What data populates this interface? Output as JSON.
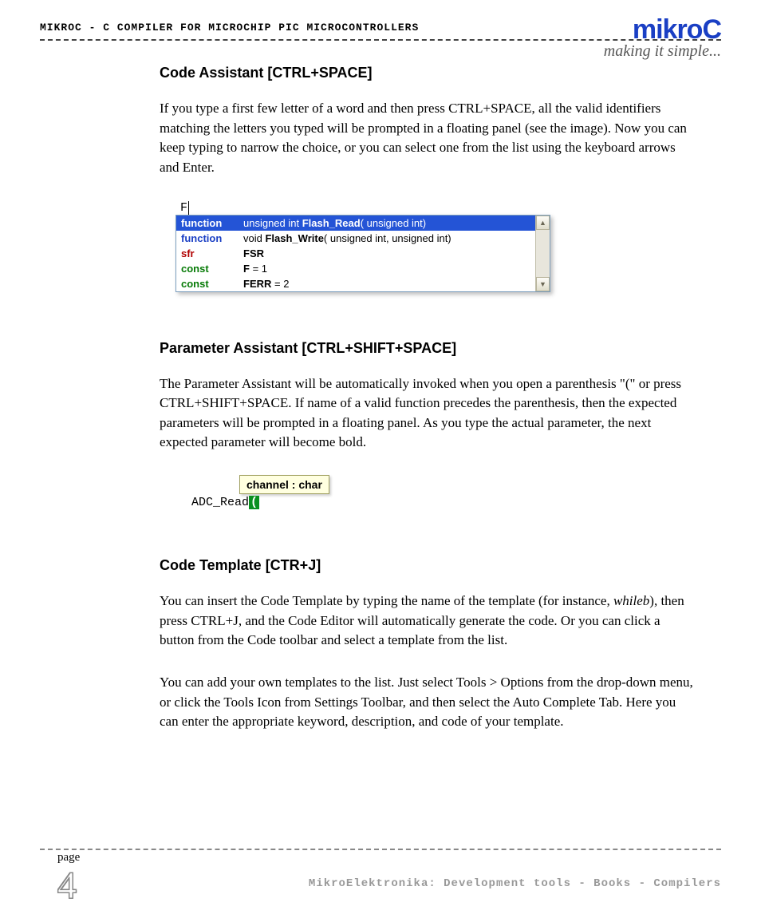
{
  "header": {
    "title": "mikroC - C Compiler for Microchip PIC microcontrollers",
    "logo": "mikroC",
    "tagline": "making it simple..."
  },
  "sections": {
    "code_assistant": {
      "title": "Code Assistant [CTRL+SPACE]",
      "body": "If you type a first few letter of a word and then press CTRL+SPACE, all the valid identifiers matching the letters you typed will be prompted in a floating panel (see the image). Now you can keep typing to narrow the choice, or you can select one from the list using the keyboard arrows and Enter.",
      "popup": {
        "typed": "F",
        "rows": [
          {
            "kind": "function",
            "kind_class": "fn",
            "sig_prefix": "unsigned int ",
            "sig_bold": "Flash_Read",
            "sig_suffix": "( unsigned int)",
            "selected": true
          },
          {
            "kind": "function",
            "kind_class": "fn",
            "sig_prefix": "void ",
            "sig_bold": "Flash_Write",
            "sig_suffix": "( unsigned int,  unsigned int)",
            "selected": false
          },
          {
            "kind": "sfr",
            "kind_class": "sfr",
            "sig_prefix": "",
            "sig_bold": "FSR",
            "sig_suffix": "",
            "selected": false
          },
          {
            "kind": "const",
            "kind_class": "const",
            "sig_prefix": "",
            "sig_bold": "F",
            "sig_suffix": " = 1",
            "selected": false
          },
          {
            "kind": "const",
            "kind_class": "const",
            "sig_prefix": "",
            "sig_bold": "FERR",
            "sig_suffix": " = 2",
            "selected": false
          }
        ],
        "scroll_up_glyph": "▲",
        "scroll_down_glyph": "▼",
        "colors": {
          "selected_bg": "#2454d6",
          "fn": "#1a3fc4",
          "sfr": "#b00000",
          "const": "#067a06",
          "border": "#7b9ebd"
        }
      }
    },
    "param_assistant": {
      "title": "Parameter Assistant [CTRL+SHIFT+SPACE]",
      "body": "The Parameter Assistant will be automatically invoked when you open a parenthesis \"(\" or press CTRL+SHIFT+SPACE. If name of a valid function precedes the parenthesis, then the expected parameters will be prompted in a floating panel. As you type the actual parameter, the next expected parameter will become bold.",
      "tooltip": "channel : char",
      "call_name": "ADC_Read",
      "paren": "(",
      "tooltip_bg": "#ffffe0",
      "paren_bg": "#0a9020"
    },
    "code_template": {
      "title": "Code Template [CTR+J]",
      "body1_pre": "You can insert the Code Template by typing the name of the template (for instance, ",
      "body1_em": "whileb",
      "body1_post": "), then press CTRL+J, and the Code Editor will automatically generate the code. Or you can click a button from the Code toolbar and select a template from the list.",
      "body2": "You can add your own templates to the list. Just select Tools > Options from the drop-down menu, or click the Tools Icon from Settings Toolbar, and then select the Auto Complete Tab. Here you can enter the appropriate keyword, description, and code of your template."
    }
  },
  "footer": {
    "page_label": "page",
    "page_number": "4",
    "text": "MikroElektronika: Development tools - Books - Compilers"
  }
}
